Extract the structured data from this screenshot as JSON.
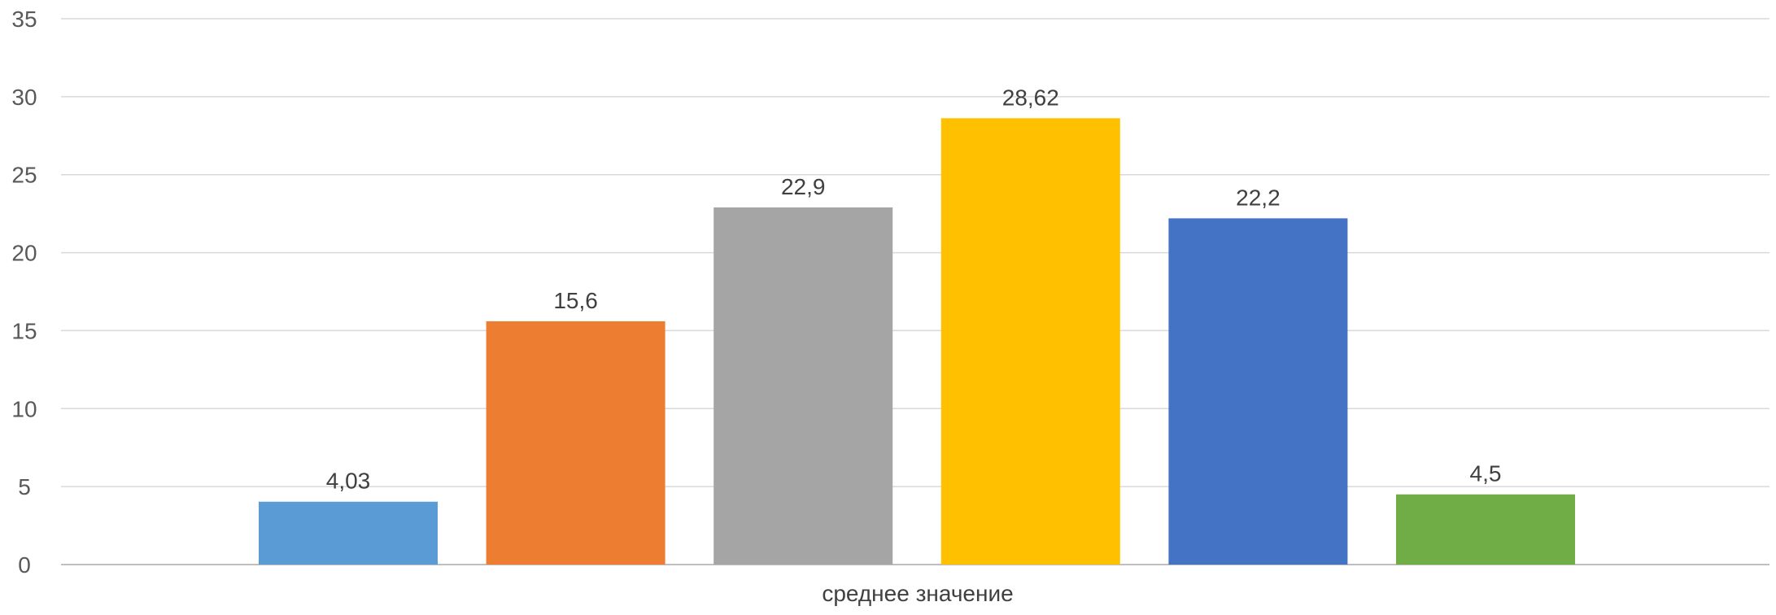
{
  "chart_data": {
    "type": "bar",
    "categories": [
      "среднее значение"
    ],
    "series": [
      {
        "label": "4,03",
        "value": 4.03,
        "color": "#5B9BD5"
      },
      {
        "label": "15,6",
        "value": 15.6,
        "color": "#ED7D31"
      },
      {
        "label": "22,9",
        "value": 22.9,
        "color": "#A5A5A5"
      },
      {
        "label": "28,62",
        "value": 28.62,
        "color": "#FFC000"
      },
      {
        "label": "22,2",
        "value": 22.2,
        "color": "#4472C4"
      },
      {
        "label": "4,5",
        "value": 4.5,
        "color": "#70AD47"
      }
    ],
    "xlabel": "среднее значение",
    "ylim": [
      0,
      35
    ],
    "yticks": [
      0,
      5,
      10,
      15,
      20,
      25,
      30,
      35
    ],
    "grid": true,
    "legend": "none"
  }
}
